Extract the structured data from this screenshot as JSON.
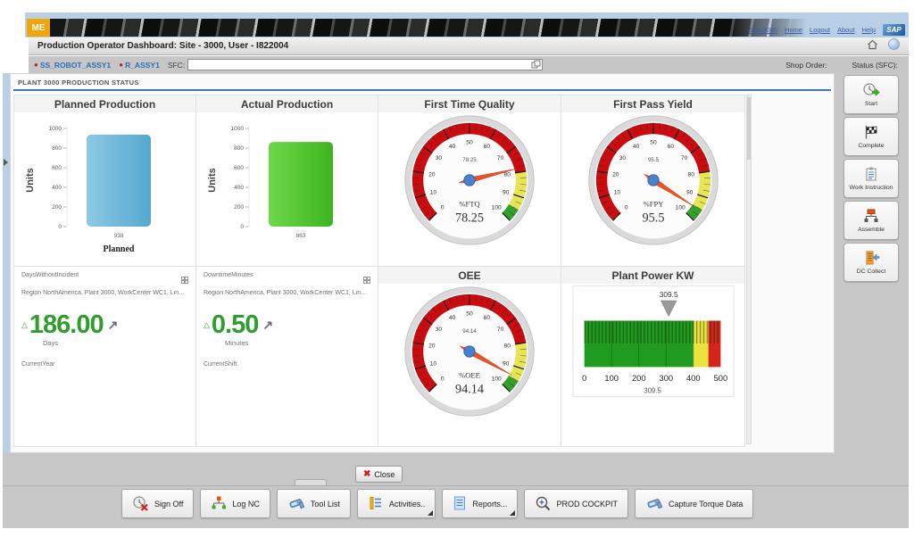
{
  "header": {
    "logo_text": "ME",
    "nav_links": [
      "Site:3000",
      "Home",
      "Logout",
      "About",
      "Help"
    ],
    "sap_logo_text": "SAP",
    "title": "Production Operator Dashboard: Site - 3000, User - I822004"
  },
  "pod": {
    "tabs": [
      {
        "label": "SS_ROBOT_ASSY1"
      },
      {
        "label": "R_ASSY1"
      }
    ],
    "sfc_label": "SFC:",
    "sfc_value": "",
    "shop_order_label": "Shop Order:",
    "status_label": "Status (SFC):"
  },
  "section_title": "PLANT 3000 PRODUCTION STATUS",
  "chart_data": [
    {
      "type": "bar",
      "title": "Planned Production",
      "ylabel": "Units",
      "ylim": [
        0,
        1000
      ],
      "yticks": [
        0,
        200,
        400,
        600,
        800,
        1000
      ],
      "categories": [
        "Planned"
      ],
      "values": [
        938
      ],
      "value_labels": [
        "938"
      ],
      "bar_gradient": [
        "#8cc9e4",
        "#56a7cf"
      ]
    },
    {
      "type": "bar",
      "title": "Actual Production",
      "ylabel": "Units",
      "ylim": [
        0,
        1000
      ],
      "yticks": [
        0,
        200,
        400,
        600,
        800,
        1000
      ],
      "categories": [
        ""
      ],
      "values": [
        863
      ],
      "value_labels": [
        "863"
      ],
      "bar_gradient": [
        "#6fd84a",
        "#3cb41e"
      ]
    },
    {
      "type": "gauge",
      "title": "First Time Quality",
      "unit_label": "%FTQ",
      "value": 78.25,
      "value_display": "78.25",
      "min": 0,
      "max": 100,
      "tick_step": 10,
      "segments": [
        {
          "from": 0,
          "to": 80,
          "color": "#c90c0f"
        },
        {
          "from": 80,
          "to": 95,
          "color": "#e7e553"
        },
        {
          "from": 95,
          "to": 100,
          "color": "#33a02c"
        }
      ]
    },
    {
      "type": "gauge",
      "title": "First Pass Yield",
      "unit_label": "%FPY",
      "value": 95.5,
      "value_display": "95.5",
      "min": 0,
      "max": 100,
      "tick_step": 10,
      "segments": [
        {
          "from": 0,
          "to": 80,
          "color": "#c90c0f"
        },
        {
          "from": 80,
          "to": 95,
          "color": "#e7e553"
        },
        {
          "from": 95,
          "to": 100,
          "color": "#33a02c"
        }
      ]
    },
    {
      "type": "gauge",
      "title": "OEE",
      "unit_label": "%OEE",
      "value": 94.14,
      "value_display": "94.14",
      "min": 0,
      "max": 100,
      "tick_step": 10,
      "segments": [
        {
          "from": 0,
          "to": 80,
          "color": "#c90c0f"
        },
        {
          "from": 80,
          "to": 95,
          "color": "#e7e553"
        },
        {
          "from": 95,
          "to": 100,
          "color": "#33a02c"
        }
      ]
    },
    {
      "type": "bullet",
      "title": "Plant Power KW",
      "value": 309.5,
      "value_display": "309.5",
      "min": 0,
      "max": 500,
      "ticks": [
        0,
        100,
        200,
        300,
        400,
        500
      ],
      "segments": [
        {
          "from": 0,
          "to": 400,
          "color": "#1f9c1f"
        },
        {
          "from": 400,
          "to": 455,
          "color": "#ece43e"
        },
        {
          "from": 455,
          "to": 500,
          "color": "#d3251b"
        }
      ]
    }
  ],
  "kpis": [
    {
      "metric": "DaysWithoutIncident",
      "context": "Region NorthAmerica, Plant 3000, WorkCenter WC1, Line ...",
      "value": "186.00",
      "unit": "Days",
      "timeframe": "CurrentYear"
    },
    {
      "metric": "DowntimeMinutes",
      "context": "Region NorthAmerica, Plant 3000, WorkCenter WC1, Line ...",
      "value": "0.50",
      "unit": "Minutes",
      "timeframe": "CurrentShift"
    }
  ],
  "sidebar_actions": [
    {
      "label": "Start"
    },
    {
      "label": "Complete"
    },
    {
      "label": "Work Instruction"
    },
    {
      "label": "Assemble"
    },
    {
      "label": "DC Collect"
    }
  ],
  "close_button_label": "Close",
  "toolbar_buttons": [
    {
      "label": "Sign Off"
    },
    {
      "label": "Log NC"
    },
    {
      "label": "Tool List"
    },
    {
      "label": "Activities..",
      "has_submenu": true
    },
    {
      "label": "Reports...",
      "has_submenu": true
    },
    {
      "label": "PROD COCKPIT"
    },
    {
      "label": "Capture Torque Data"
    }
  ],
  "colors": {
    "accent_blue": "#2f6db5",
    "kpi_green": "#2f9e2f",
    "gauge_red": "#c90c0f",
    "gauge_yellow": "#e7e553",
    "gauge_green": "#33a02c",
    "needle_orange": "#e85426",
    "hub_blue": "#4a80d0"
  }
}
